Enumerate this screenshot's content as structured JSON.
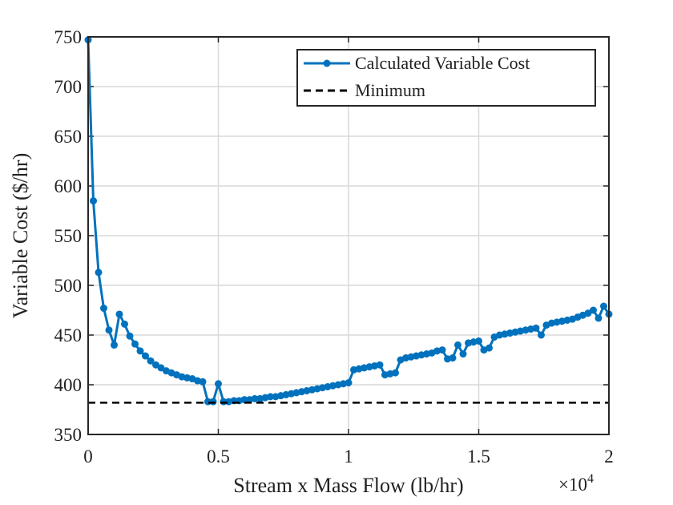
{
  "chart_data": {
    "type": "line",
    "x_label": "Stream x Mass Flow (lb/hr)",
    "y_label": "Variable Cost ($/hr)",
    "x_multiplier": {
      "base": "×10",
      "exponent": "4"
    },
    "xlim": [
      0,
      2
    ],
    "ylim": [
      350,
      750
    ],
    "xticks": [
      0,
      0.5,
      1,
      1.5,
      2
    ],
    "yticks": [
      350,
      400,
      450,
      500,
      550,
      600,
      650,
      700,
      750
    ],
    "grid": true,
    "legend": "upper right",
    "series": [
      {
        "name": "Calculated Variable Cost",
        "color": "#0072bd",
        "marker": true,
        "dash": false,
        "x": [
          0,
          0.02,
          0.04,
          0.06,
          0.08,
          0.1,
          0.12,
          0.14,
          0.16,
          0.18,
          0.2,
          0.22,
          0.24,
          0.26,
          0.28,
          0.3,
          0.32,
          0.34,
          0.36,
          0.38,
          0.4,
          0.42,
          0.44,
          0.46,
          0.48,
          0.5,
          0.52,
          0.54,
          0.56,
          0.58,
          0.6,
          0.62,
          0.64,
          0.66,
          0.68,
          0.7,
          0.72,
          0.74,
          0.76,
          0.78,
          0.8,
          0.82,
          0.84,
          0.86,
          0.88,
          0.9,
          0.92,
          0.94,
          0.96,
          0.98,
          1,
          1.02,
          1.04,
          1.06,
          1.08,
          1.1,
          1.12,
          1.14,
          1.16,
          1.18,
          1.2,
          1.22,
          1.24,
          1.26,
          1.28,
          1.3,
          1.32,
          1.34,
          1.36,
          1.38,
          1.4,
          1.42,
          1.44,
          1.46,
          1.48,
          1.5,
          1.52,
          1.54,
          1.56,
          1.58,
          1.6,
          1.62,
          1.64,
          1.66,
          1.68,
          1.7,
          1.72,
          1.74,
          1.76,
          1.78,
          1.8,
          1.82,
          1.84,
          1.86,
          1.88,
          1.9,
          1.92,
          1.94,
          1.96,
          1.98,
          2
        ],
        "values": [
          747,
          585,
          513,
          477,
          455,
          440,
          471,
          461,
          449,
          441,
          434,
          429,
          424,
          420,
          417,
          414,
          412,
          410,
          408,
          407,
          406,
          404,
          403,
          383,
          383,
          401,
          383,
          383,
          384,
          384,
          385,
          385,
          386,
          386,
          387,
          388,
          388,
          389,
          390,
          391,
          392,
          393,
          394,
          395,
          396,
          397,
          398,
          399,
          400,
          401,
          402,
          415,
          416,
          417,
          418,
          419,
          420,
          410,
          411,
          412,
          425,
          427,
          428,
          429,
          430,
          431,
          432,
          434,
          435,
          426,
          427,
          440,
          431,
          442,
          443,
          444,
          435,
          437,
          448,
          450,
          451,
          452,
          453,
          454,
          455,
          456,
          457,
          450,
          460,
          462,
          463,
          464,
          465,
          466,
          468,
          470,
          472,
          475,
          467,
          479,
          471
        ]
      },
      {
        "name": "Minimum",
        "color": "#000000",
        "marker": false,
        "dash": true,
        "x": [
          0,
          2
        ],
        "values": [
          382,
          382
        ]
      }
    ]
  }
}
